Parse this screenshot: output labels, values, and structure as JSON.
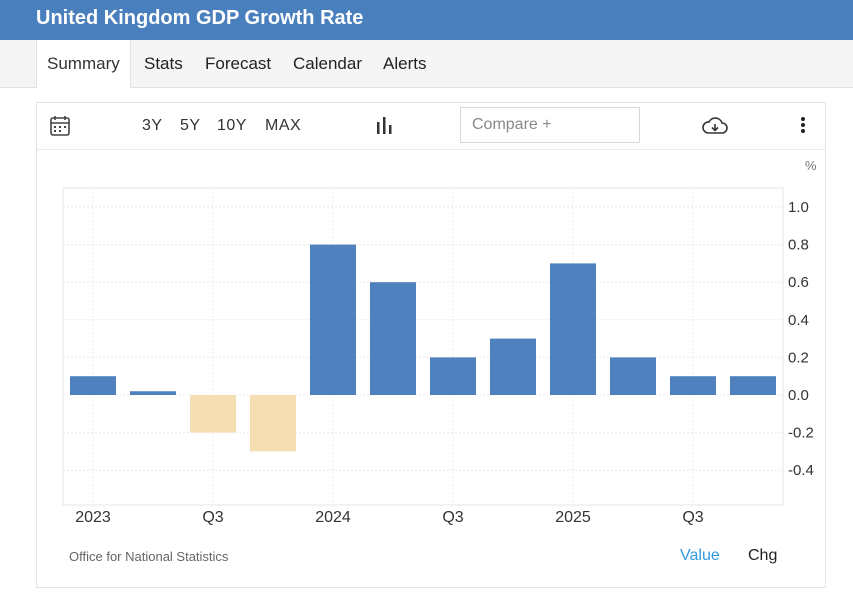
{
  "header": {
    "title": "United Kingdom GDP Growth Rate"
  },
  "tabs": [
    {
      "label": "Summary",
      "active": true
    },
    {
      "label": "Stats",
      "active": false
    },
    {
      "label": "Forecast",
      "active": false
    },
    {
      "label": "Calendar",
      "active": false
    },
    {
      "label": "Alerts",
      "active": false
    }
  ],
  "toolbar": {
    "ranges": [
      "3Y",
      "5Y",
      "10Y",
      "MAX"
    ],
    "compare_placeholder": "Compare +",
    "icons": [
      "calendar-icon",
      "bar-chart-icon",
      "cloud-download-icon",
      "more-vertical-icon"
    ]
  },
  "footer": {
    "source": "Office for National Statistics",
    "value_label": "Value",
    "chg_label": "Chg"
  },
  "colors": {
    "positive": "#4e81bd",
    "negative": "#f6deb3",
    "accent": "#4a7fbd"
  },
  "chart_data": {
    "type": "bar",
    "title": "United Kingdom GDP Growth Rate",
    "unit": "%",
    "categories": [
      "2023 Q1",
      "2023 Q2",
      "2023 Q3",
      "2023 Q4",
      "2024 Q1",
      "2024 Q2",
      "2024 Q3",
      "2024 Q4",
      "2025 Q1",
      "2025 Q2",
      "2025 Q3",
      "2025 Q4"
    ],
    "values": [
      0.1,
      0.02,
      -0.2,
      -0.3,
      0.8,
      0.6,
      0.2,
      0.3,
      0.7,
      0.2,
      0.1,
      0.1
    ],
    "x_tick_labels": [
      {
        "index": 0,
        "label": "2023"
      },
      {
        "index": 2,
        "label": "Q3"
      },
      {
        "index": 4,
        "label": "2024"
      },
      {
        "index": 6,
        "label": "Q3"
      },
      {
        "index": 8,
        "label": "2025"
      },
      {
        "index": 10,
        "label": "Q3"
      }
    ],
    "y_ticks": [
      1.0,
      0.8,
      0.6,
      0.4,
      0.2,
      0.0,
      -0.2,
      -0.4
    ],
    "y_tick_labels": [
      "1.0",
      "0.8",
      "0.6",
      "0.4",
      "0.2",
      "0.0",
      "-0.2",
      "-0.4"
    ],
    "ylim": [
      -0.6,
      1.1
    ],
    "ylabel": "%",
    "grid": true,
    "y_axis_position": "right"
  }
}
